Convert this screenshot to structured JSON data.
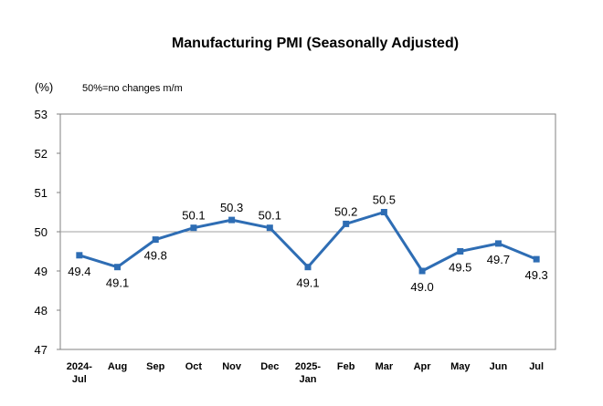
{
  "chart_data": {
    "type": "line",
    "title": "Manufacturing PMI (Seasonally Adjusted)",
    "unit_label": "(%)",
    "note": "50%=no changes m/m",
    "categories": [
      [
        "2024-",
        "Jul"
      ],
      [
        "Aug"
      ],
      [
        "Sep"
      ],
      [
        "Oct"
      ],
      [
        "Nov"
      ],
      [
        "Dec"
      ],
      [
        "2025-",
        "Jan"
      ],
      [
        "Feb"
      ],
      [
        "Mar"
      ],
      [
        "Apr"
      ],
      [
        "May"
      ],
      [
        "Jun"
      ],
      [
        "Jul"
      ]
    ],
    "series": [
      {
        "values": [
          49.4,
          49.1,
          49.8,
          50.1,
          50.3,
          50.1,
          49.1,
          50.2,
          50.5,
          49.0,
          49.5,
          49.7,
          49.3
        ],
        "labels": [
          "49.4",
          "49.1",
          "49.8",
          "50.1",
          "50.3",
          "50.1",
          "49.1",
          "50.2",
          "50.5",
          "49.0",
          "49.5",
          "49.7",
          "49.3"
        ],
        "label_pos": [
          "below",
          "below",
          "below",
          "above",
          "above",
          "above",
          "below",
          "above",
          "above",
          "below",
          "below",
          "below",
          "below"
        ],
        "color": "#2E6DB4"
      }
    ],
    "ylim": [
      47,
      53
    ],
    "yticks": [
      "47",
      "48",
      "49",
      "50",
      "51",
      "52",
      "53"
    ],
    "reference_line": 50,
    "reference_color": "#A0A0A0",
    "grid": false,
    "legend": "none",
    "xlabel": "",
    "ylabel": ""
  }
}
